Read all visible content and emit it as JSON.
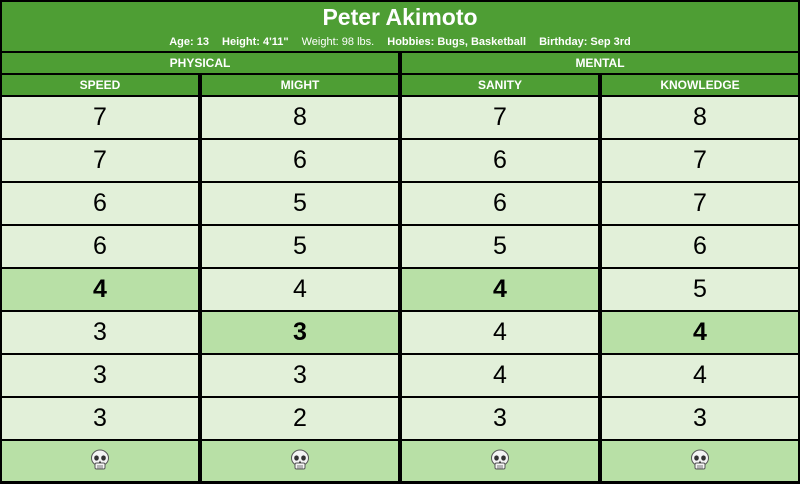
{
  "character": {
    "name": "Peter Akimoto",
    "age": "Age: 13",
    "height": "Height: 4'11\"",
    "weight": "Weight: 98 lbs.",
    "hobbies": "Hobbies: Bugs, Basketball",
    "birthday": "Birthday: Sep 3rd"
  },
  "groups": [
    "PHYSICAL",
    "MENTAL"
  ],
  "columns": [
    "SPEED",
    "MIGHT",
    "SANITY",
    "KNOWLEDGE"
  ],
  "rows": [
    [
      "7",
      "8",
      "7",
      "8"
    ],
    [
      "7",
      "6",
      "6",
      "7"
    ],
    [
      "6",
      "5",
      "6",
      "7"
    ],
    [
      "6",
      "5",
      "5",
      "6"
    ],
    [
      "4",
      "4",
      "4",
      "5"
    ],
    [
      "3",
      "3",
      "4",
      "4"
    ],
    [
      "3",
      "3",
      "4",
      "4"
    ],
    [
      "3",
      "2",
      "3",
      "3"
    ]
  ],
  "starting_values": [
    {
      "column": 0,
      "row": 4
    },
    {
      "column": 1,
      "row": 5
    },
    {
      "column": 2,
      "row": 4
    },
    {
      "column": 3,
      "row": 5
    }
  ],
  "death_icon": "skull-icon",
  "colors": {
    "header": "#4e9e34",
    "cell": "#e2f0d9",
    "highlight": "#b8e0a6",
    "border": "#000000"
  }
}
